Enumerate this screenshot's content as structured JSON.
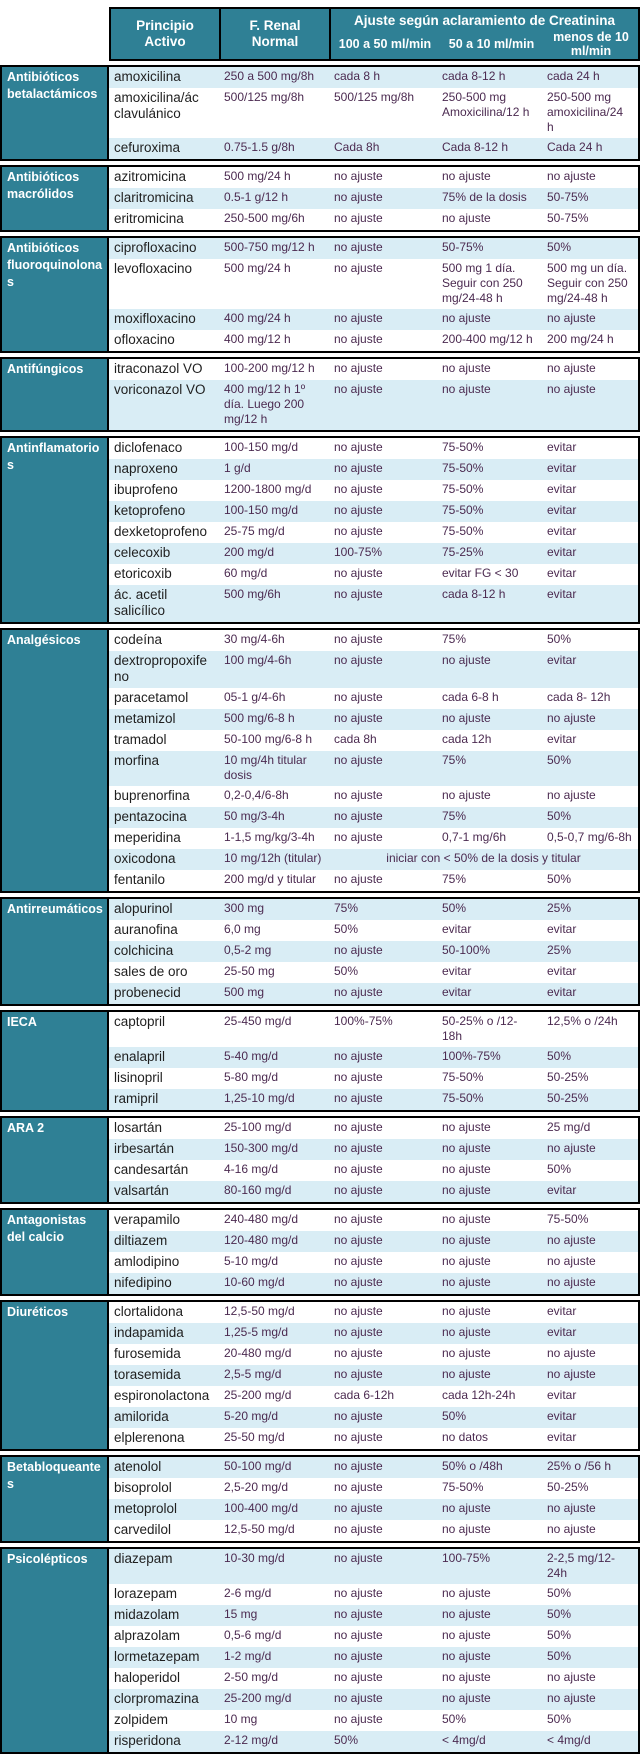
{
  "table": {
    "colors": {
      "header_teal": "#2F8095",
      "stripe_blue": "#D9EDF5",
      "row_white": "#FFFFFF",
      "border": "#000000",
      "value_text": "#4B2A50",
      "drug_text": "#1F1F1F",
      "category_text": "#FFFFFF"
    },
    "header": {
      "principio_activo": "Principio Activo",
      "f_renal_normal": "F. Renal Normal",
      "ajuste_title": "Ajuste según aclaramiento de Creatinina",
      "sub_columns": [
        "100 a 50 ml/min",
        "50 a 10 ml/min",
        "menos de 10 ml/min"
      ]
    },
    "groups": [
      {
        "category": "Antibióticos betalactámicos",
        "first_row_shaded": true,
        "rows": [
          {
            "drug": "amoxicilina",
            "normal": "250 a 500 mg/8h",
            "c100_50": "cada 8 h",
            "c50_10": "cada 8-12 h",
            "c10": "cada 24 h"
          },
          {
            "drug": "amoxicilina/ác clavulánico",
            "normal": "500/125 mg/8h",
            "c100_50": "500/125 mg/8h",
            "c50_10": "250-500 mg Amoxicilina/12 h",
            "c10": "250-500 mg amoxicilina/24 h"
          },
          {
            "drug": "cefuroxima",
            "normal": "0.75-1.5 g/8h",
            "c100_50": "Cada 8h",
            "c50_10": "Cada 8-12 h",
            "c10": "Cada 24 h"
          }
        ]
      },
      {
        "category": "Antibióticos macrólidos",
        "first_row_shaded": false,
        "rows": [
          {
            "drug": "azitromicina",
            "normal": "500 mg/24 h",
            "c100_50": "no ajuste",
            "c50_10": "no ajuste",
            "c10": "no ajuste"
          },
          {
            "drug": "claritromicina",
            "normal": "0.5-1 g/12 h",
            "c100_50": "no ajuste",
            "c50_10": "75% de la dosis",
            "c10": "50-75%"
          },
          {
            "drug": "eritromicina",
            "normal": "250-500 mg/6h",
            "c100_50": "no ajuste",
            "c50_10": "no ajuste",
            "c10": "50-75%"
          }
        ]
      },
      {
        "category": "Antibióticos fluoroquinolonas",
        "first_row_shaded": true,
        "rows": [
          {
            "drug": "ciprofloxacino",
            "normal": "500-750 mg/12 h",
            "c100_50": "no ajuste",
            "c50_10": "50-75%",
            "c10": "50%"
          },
          {
            "drug": "levofloxacino",
            "normal": "500 mg/24 h",
            "c100_50": "no ajuste",
            "c50_10": "500 mg 1 día. Seguir con 250 mg/24-48 h",
            "c10": "500 mg un día. Seguir con 250 mg/24-48 h"
          },
          {
            "drug": "moxifloxacino",
            "normal": "400 mg/24 h",
            "c100_50": "no ajuste",
            "c50_10": "no ajuste",
            "c10": "no ajuste"
          },
          {
            "drug": "ofloxacino",
            "normal": "400 mg/12 h",
            "c100_50": "no ajuste",
            "c50_10": "200-400 mg/12 h",
            "c10": "200 mg/24 h"
          }
        ]
      },
      {
        "category": "Antifúngicos",
        "first_row_shaded": false,
        "rows": [
          {
            "drug": "itraconazol VO",
            "normal": "100-200 mg/12 h",
            "c100_50": "no ajuste",
            "c50_10": "no ajuste",
            "c10": "no ajuste"
          },
          {
            "drug": "voriconazol VO",
            "normal": "400 mg/12 h 1º día. Luego 200 mg/12 h",
            "c100_50": "no ajuste",
            "c50_10": "no ajuste",
            "c10": "no ajuste"
          }
        ]
      },
      {
        "category": "Antinflamatorios",
        "first_row_shaded": false,
        "rows": [
          {
            "drug": "diclofenaco",
            "normal": "100-150 mg/d",
            "c100_50": "no ajuste",
            "c50_10": "75-50%",
            "c10": "evitar"
          },
          {
            "drug": "naproxeno",
            "normal": "1 g/d",
            "c100_50": "no ajuste",
            "c50_10": "75-50%",
            "c10": "evitar"
          },
          {
            "drug": "ibuprofeno",
            "normal": "1200-1800 mg/d",
            "c100_50": "no ajuste",
            "c50_10": "75-50%",
            "c10": "evitar"
          },
          {
            "drug": "ketoprofeno",
            "normal": "100-150 mg/d",
            "c100_50": "no ajuste",
            "c50_10": "75-50%",
            "c10": "evitar"
          },
          {
            "drug": "dexketoprofeno",
            "normal": "25-75 mg/d",
            "c100_50": "no ajuste",
            "c50_10": "75-50%",
            "c10": "evitar"
          },
          {
            "drug": "celecoxib",
            "normal": "200 mg/d",
            "c100_50": "100-75%",
            "c50_10": "75-25%",
            "c10": "evitar"
          },
          {
            "drug": "etoricoxib",
            "normal": "60 mg/d",
            "c100_50": "no ajuste",
            "c50_10": "evitar FG < 30",
            "c10": "evitar"
          },
          {
            "drug": "ác. acetil salicílico",
            "normal": "500 mg/6h",
            "c100_50": "no ajuste",
            "c50_10": "cada 8-12 h",
            "c10": "evitar"
          }
        ]
      },
      {
        "category": "Analgésicos",
        "first_row_shaded": false,
        "rows": [
          {
            "drug": "codeína",
            "normal": "30 mg/4-6h",
            "c100_50": "no ajuste",
            "c50_10": "75%",
            "c10": "50%"
          },
          {
            "drug": "dextropropoxifeno",
            "normal": "100 mg/4-6h",
            "c100_50": "no ajuste",
            "c50_10": "no ajuste",
            "c10": "evitar"
          },
          {
            "drug": "paracetamol",
            "normal": "05-1 g/4-6h",
            "c100_50": "no ajuste",
            "c50_10": "cada 6-8 h",
            "c10": "cada 8- 12h"
          },
          {
            "drug": "metamizol",
            "normal": "500 mg/6-8 h",
            "c100_50": "no ajuste",
            "c50_10": "no ajuste",
            "c10": "no ajuste"
          },
          {
            "drug": "tramadol",
            "normal": "50-100 mg/6-8 h",
            "c100_50": "cada 8h",
            "c50_10": "cada 12h",
            "c10": "evitar"
          },
          {
            "drug": "morfina",
            "normal": "10 mg/4h titular dosis",
            "c100_50": "no ajuste",
            "c50_10": "75%",
            "c10": "50%"
          },
          {
            "drug": "buprenorfina",
            "normal": "0,2-0,4/6-8h",
            "c100_50": "no ajuste",
            "c50_10": "no ajuste",
            "c10": "no ajuste"
          },
          {
            "drug": "pentazocina",
            "normal": "50 mg/3-4h",
            "c100_50": "no ajuste",
            "c50_10": "75%",
            "c10": "50%"
          },
          {
            "drug": "meperidina",
            "normal": "1-1,5 mg/kg/3-4h",
            "c100_50": "no ajuste",
            "c50_10": "0,7-1 mg/6h",
            "c10": "0,5-0,7 mg/6-8h"
          },
          {
            "drug": "oxicodona",
            "normal": "10 mg/12h (titular)",
            "span_all": "iniciar con < 50% de la dosis y titular"
          },
          {
            "drug": "fentanilo",
            "normal": "200 mg/d y titular",
            "c100_50": "no ajuste",
            "c50_10": "75%",
            "c10": "50%"
          }
        ]
      },
      {
        "category": "Antirreumáticos",
        "first_row_shaded": true,
        "rows": [
          {
            "drug": "alopurinol",
            "normal": "300 mg",
            "c100_50": "75%",
            "c50_10": "50%",
            "c10": "25%"
          },
          {
            "drug": "auranofina",
            "normal": "6,0 mg",
            "c100_50": "50%",
            "c50_10": "evitar",
            "c10": "evitar"
          },
          {
            "drug": "colchicina",
            "normal": "0,5-2 mg",
            "c100_50": "no ajuste",
            "c50_10": "50-100%",
            "c10": "25%"
          },
          {
            "drug": "sales de oro",
            "normal": "25-50 mg",
            "c100_50": "50%",
            "c50_10": "evitar",
            "c10": "evitar"
          },
          {
            "drug": "probenecid",
            "normal": "500 mg",
            "c100_50": "no ajuste",
            "c50_10": "evitar",
            "c10": "evitar"
          }
        ]
      },
      {
        "category": "IECA",
        "first_row_shaded": false,
        "rows": [
          {
            "drug": "captopril",
            "normal": "25-450 mg/d",
            "c100_50": "100%-75%",
            "c50_10": "50-25% o /12-18h",
            "c10": "12,5% o /24h"
          },
          {
            "drug": "enalapril",
            "normal": "5-40 mg/d",
            "c100_50": "no ajuste",
            "c50_10": "100%-75%",
            "c10": "50%"
          },
          {
            "drug": "lisinopril",
            "normal": "5-80 mg/d",
            "c100_50": "no ajuste",
            "c50_10": "75-50%",
            "c10": "50-25%"
          },
          {
            "drug": "ramipril",
            "normal": "1,25-10 mg/d",
            "c100_50": "no ajuste",
            "c50_10": "75-50%",
            "c10": "50-25%"
          }
        ]
      },
      {
        "category": "ARA 2",
        "first_row_shaded": false,
        "rows": [
          {
            "drug": "losartán",
            "normal": "25-100 mg/d",
            "c100_50": "no ajuste",
            "c50_10": "no ajuste",
            "c10": "25 mg/d"
          },
          {
            "drug": "irbesartán",
            "normal": "150-300 mg/d",
            "c100_50": "no ajuste",
            "c50_10": "no ajuste",
            "c10": "no ajuste"
          },
          {
            "drug": "candesartán",
            "normal": "4-16 mg/d",
            "c100_50": "no ajuste",
            "c50_10": "no ajuste",
            "c10": "50%"
          },
          {
            "drug": "valsartán",
            "normal": "80-160 mg/d",
            "c100_50": "no ajuste",
            "c50_10": "no ajuste",
            "c10": "evitar"
          }
        ]
      },
      {
        "category": "Antagonistas del calcio",
        "first_row_shaded": false,
        "rows": [
          {
            "drug": "verapamilo",
            "normal": "240-480 mg/d",
            "c100_50": "no ajuste",
            "c50_10": "no ajuste",
            "c10": "75-50%"
          },
          {
            "drug": "diltiazem",
            "normal": "120-480 mg/d",
            "c100_50": "no ajuste",
            "c50_10": "no ajuste",
            "c10": "no ajuste"
          },
          {
            "drug": "amlodipino",
            "normal": "5-10 mg/d",
            "c100_50": "no ajuste",
            "c50_10": "no ajuste",
            "c10": "no ajuste"
          },
          {
            "drug": "nifedipino",
            "normal": "10-60 mg/d",
            "c100_50": "no ajuste",
            "c50_10": "no ajuste",
            "c10": "no ajuste"
          }
        ]
      },
      {
        "category": "Diuréticos",
        "first_row_shaded": false,
        "rows": [
          {
            "drug": "clortalidona",
            "normal": "12,5-50 mg/d",
            "c100_50": "no ajuste",
            "c50_10": "no ajuste",
            "c10": "evitar"
          },
          {
            "drug": "indapamida",
            "normal": "1,25-5 mg/d",
            "c100_50": "no ajuste",
            "c50_10": "no ajuste",
            "c10": "evitar"
          },
          {
            "drug": "furosemida",
            "normal": "20-480 mg/d",
            "c100_50": "no ajuste",
            "c50_10": "no ajuste",
            "c10": "no ajuste"
          },
          {
            "drug": "torasemida",
            "normal": "2,5-5 mg/d",
            "c100_50": "no ajuste",
            "c50_10": "no ajuste",
            "c10": "no ajuste"
          },
          {
            "drug": "espironolactona",
            "normal": "25-200 mg/d",
            "c100_50": "cada 6-12h",
            "c50_10": "cada 12h-24h",
            "c10": "evitar"
          },
          {
            "drug": "amilorida",
            "normal": "5-20 mg/d",
            "c100_50": "no ajuste",
            "c50_10": "50%",
            "c10": "evitar"
          },
          {
            "drug": "elplerenona",
            "normal": "25-50 mg/d",
            "c100_50": "no ajuste",
            "c50_10": "no datos",
            "c10": "evitar"
          }
        ]
      },
      {
        "category": "Betabloqueantes",
        "first_row_shaded": true,
        "rows": [
          {
            "drug": "atenolol",
            "normal": "50-100 mg/d",
            "c100_50": "no ajuste",
            "c50_10": "50% o /48h",
            "c10": "25% o /56 h"
          },
          {
            "drug": "bisoprolol",
            "normal": "2,5-20 mg/d",
            "c100_50": "no ajuste",
            "c50_10": "75-50%",
            "c10": "50-25%"
          },
          {
            "drug": "metoprolol",
            "normal": "100-400 mg/d",
            "c100_50": "no ajuste",
            "c50_10": "no ajuste",
            "c10": "no ajuste"
          },
          {
            "drug": "carvedilol",
            "normal": "12,5-50 mg/d",
            "c100_50": "no ajuste",
            "c50_10": "no ajuste",
            "c10": "no ajuste"
          }
        ]
      },
      {
        "category": "Psicolépticos",
        "first_row_shaded": true,
        "rows": [
          {
            "drug": "diazepam",
            "normal": "10-30 mg/d",
            "c100_50": "no ajuste",
            "c50_10": "100-75%",
            "c10": "2-2,5 mg/12-24h"
          },
          {
            "drug": "lorazepam",
            "normal": "2-6 mg/d",
            "c100_50": "no ajuste",
            "c50_10": "no ajuste",
            "c10": "50%"
          },
          {
            "drug": "midazolam",
            "normal": "15 mg",
            "c100_50": "no ajuste",
            "c50_10": "no ajuste",
            "c10": "50%"
          },
          {
            "drug": "alprazolam",
            "normal": "0,5-6 mg/d",
            "c100_50": "no ajuste",
            "c50_10": "no ajuste",
            "c10": "50%"
          },
          {
            "drug": "lormetazepam",
            "normal": "1-2 mg/d",
            "c100_50": "no ajuste",
            "c50_10": "no ajuste",
            "c10": "50%"
          },
          {
            "drug": "haloperidol",
            "normal": "2-50 mg/d",
            "c100_50": "no ajuste",
            "c50_10": "no ajuste",
            "c10": "no ajuste"
          },
          {
            "drug": "clorpromazina",
            "normal": "25-200 mg/d",
            "c100_50": "no ajuste",
            "c50_10": "no ajuste",
            "c10": "no ajuste"
          },
          {
            "drug": "zolpidem",
            "normal": "10 mg",
            "c100_50": "no ajuste",
            "c50_10": "50%",
            "c10": "50%"
          },
          {
            "drug": "risperidona",
            "normal": "2-12 mg/d",
            "c100_50": "50%",
            "c50_10": "< 4mg/d",
            "c10": "< 4mg/d"
          }
        ]
      }
    ]
  }
}
